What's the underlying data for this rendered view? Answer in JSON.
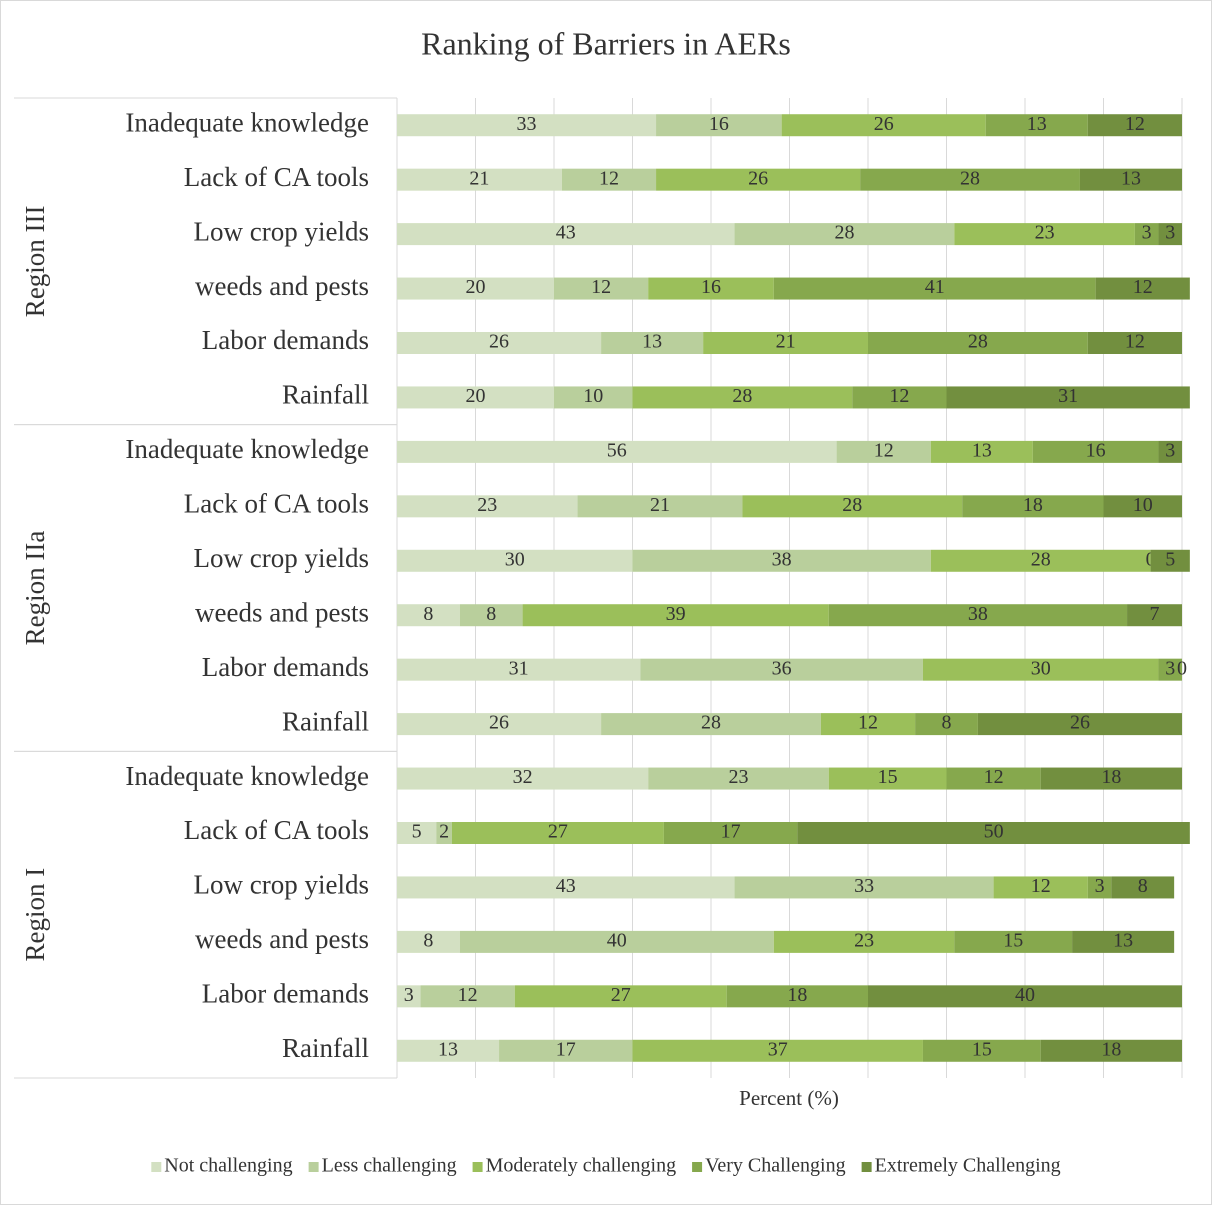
{
  "chart_data": {
    "type": "stacked_barh",
    "title": "Ranking of Barriers in AERs",
    "xlabel": "Percent (%)",
    "xlim": [
      0,
      100
    ],
    "xticks": [
      0,
      10,
      20,
      30,
      40,
      50,
      60,
      70,
      80,
      90,
      100
    ],
    "grid": true,
    "legend": "bottom",
    "groups": [
      {
        "label": "Region III",
        "categories": [
          "Inadequate knowledge",
          "Lack of CA tools",
          "Low crop yields",
          "weeds and pests",
          "Labor demands",
          "Rainfall"
        ]
      },
      {
        "label": "Region IIa",
        "categories": [
          "Inadequate knowledge",
          "Lack of CA tools",
          "Low crop yields",
          "weeds and pests",
          "Labor demands",
          "Rainfall"
        ]
      },
      {
        "label": "Region I",
        "categories": [
          "Inadequate knowledge",
          "Lack of CA tools",
          "Low crop yields",
          "weeds and pests",
          "Labor demands",
          "Rainfall"
        ]
      }
    ],
    "series": [
      {
        "name": "Not challenging",
        "color": "#d3e0c2",
        "values": [
          33,
          21,
          43,
          20,
          26,
          20,
          56,
          23,
          30,
          8,
          31,
          26,
          32,
          5,
          43,
          8,
          3,
          13
        ]
      },
      {
        "name": "Less challenging",
        "color": "#b9cf9c",
        "values": [
          16,
          12,
          28,
          12,
          13,
          10,
          12,
          21,
          38,
          8,
          36,
          28,
          23,
          2,
          33,
          40,
          12,
          17
        ]
      },
      {
        "name": "Moderately challenging",
        "color": "#9bbf5a",
        "values": [
          26,
          26,
          23,
          16,
          21,
          28,
          13,
          28,
          28,
          39,
          30,
          12,
          15,
          27,
          12,
          23,
          27,
          37
        ]
      },
      {
        "name": "Very Challenging",
        "color": "#86a84d",
        "values": [
          13,
          28,
          3,
          41,
          28,
          12,
          16,
          18,
          0,
          38,
          3,
          8,
          12,
          17,
          3,
          15,
          18,
          15
        ]
      },
      {
        "name": "Extremely Challenging",
        "color": "#728f3f",
        "values": [
          12,
          13,
          3,
          12,
          12,
          31,
          3,
          10,
          5,
          7,
          0,
          26,
          18,
          50,
          8,
          13,
          40,
          18
        ]
      }
    ]
  }
}
